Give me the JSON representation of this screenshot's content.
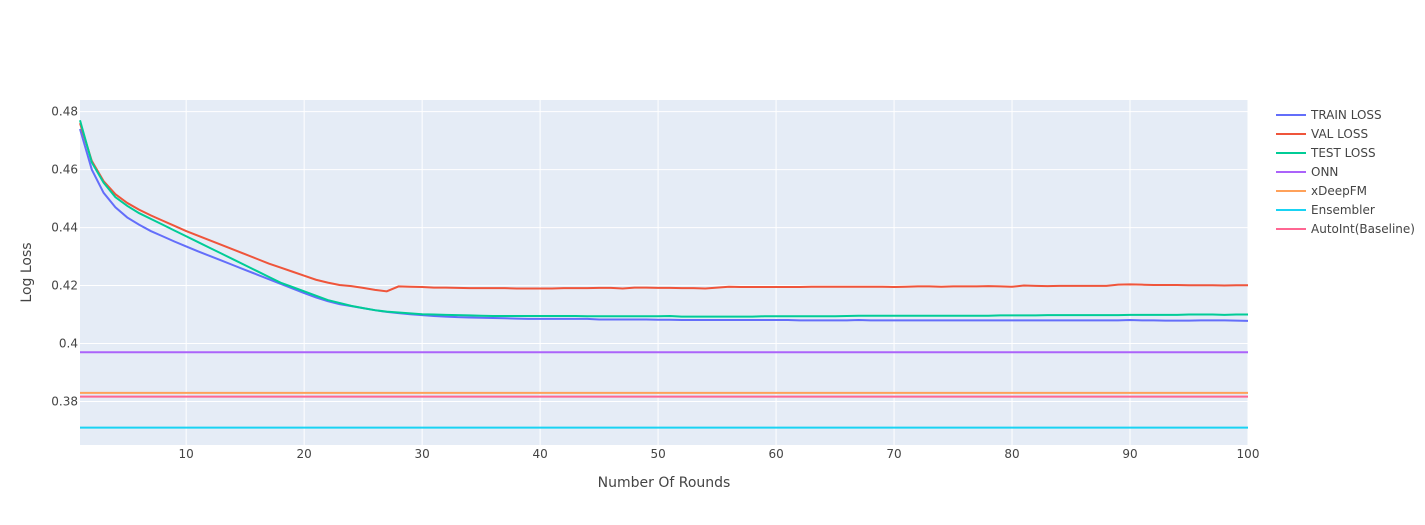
{
  "chart_data": {
    "type": "line",
    "title": "",
    "xlabel": "Number Of Rounds",
    "ylabel": "Log Loss",
    "xlim": [
      1,
      100
    ],
    "ylim": [
      0.365,
      0.484
    ],
    "x_ticks": [
      10,
      20,
      30,
      40,
      50,
      60,
      70,
      80,
      90,
      100
    ],
    "y_ticks": [
      0.38,
      0.4,
      0.42,
      0.44,
      0.46,
      0.48
    ],
    "y_tick_labels": [
      "0.38",
      "0.4",
      "0.42",
      "0.44",
      "0.46",
      "0.48"
    ],
    "grid": true,
    "legend_position": "right",
    "x": [
      1,
      2,
      3,
      4,
      5,
      6,
      7,
      8,
      9,
      10,
      11,
      12,
      13,
      14,
      15,
      16,
      17,
      18,
      19,
      20,
      21,
      22,
      23,
      24,
      25,
      26,
      27,
      28,
      29,
      30,
      31,
      32,
      33,
      34,
      35,
      36,
      37,
      38,
      39,
      40,
      41,
      42,
      43,
      44,
      45,
      46,
      47,
      48,
      49,
      50,
      51,
      52,
      53,
      54,
      55,
      56,
      57,
      58,
      59,
      60,
      61,
      62,
      63,
      64,
      65,
      66,
      67,
      68,
      69,
      70,
      71,
      72,
      73,
      74,
      75,
      76,
      77,
      78,
      79,
      80,
      81,
      82,
      83,
      84,
      85,
      86,
      87,
      88,
      89,
      90,
      91,
      92,
      93,
      94,
      95,
      96,
      97,
      98,
      99,
      100
    ],
    "series": [
      {
        "name": "TRAIN LOSS",
        "color": "#636efa",
        "values": [
          0.474,
          0.46,
          0.452,
          0.447,
          0.4435,
          0.441,
          0.4388,
          0.437,
          0.4352,
          0.4335,
          0.4318,
          0.4302,
          0.4286,
          0.427,
          0.4254,
          0.4238,
          0.4222,
          0.4206,
          0.419,
          0.4174,
          0.4159,
          0.4146,
          0.4136,
          0.4129,
          0.4122,
          0.4115,
          0.4109,
          0.4105,
          0.4101,
          0.4098,
          0.4095,
          0.4093,
          0.4091,
          0.409,
          0.4089,
          0.4088,
          0.4087,
          0.4086,
          0.4085,
          0.4085,
          0.4085,
          0.4085,
          0.4085,
          0.4085,
          0.4083,
          0.4083,
          0.4083,
          0.4083,
          0.4083,
          0.4082,
          0.4082,
          0.4081,
          0.4081,
          0.4081,
          0.4081,
          0.4081,
          0.4081,
          0.4081,
          0.4081,
          0.4081,
          0.4081,
          0.408,
          0.408,
          0.408,
          0.408,
          0.408,
          0.4081,
          0.408,
          0.408,
          0.408,
          0.408,
          0.408,
          0.408,
          0.408,
          0.408,
          0.408,
          0.408,
          0.408,
          0.408,
          0.408,
          0.408,
          0.408,
          0.408,
          0.408,
          0.408,
          0.408,
          0.408,
          0.408,
          0.408,
          0.4081,
          0.408,
          0.408,
          0.4079,
          0.4079,
          0.4079,
          0.408,
          0.408,
          0.408,
          0.4079,
          0.4078
        ]
      },
      {
        "name": "VAL LOSS",
        "color": "#ef553b",
        "values": [
          0.476,
          0.463,
          0.456,
          0.4515,
          0.4485,
          0.4462,
          0.4442,
          0.4424,
          0.4406,
          0.4388,
          0.4372,
          0.4356,
          0.434,
          0.4324,
          0.4308,
          0.4292,
          0.4276,
          0.4262,
          0.4248,
          0.4234,
          0.422,
          0.421,
          0.4202,
          0.4198,
          0.4192,
          0.4185,
          0.418,
          0.4197,
          0.4196,
          0.4195,
          0.4193,
          0.4193,
          0.4192,
          0.4191,
          0.4191,
          0.4191,
          0.4191,
          0.419,
          0.419,
          0.419,
          0.419,
          0.4191,
          0.4191,
          0.4191,
          0.4192,
          0.4192,
          0.419,
          0.4193,
          0.4193,
          0.4192,
          0.4192,
          0.4191,
          0.4191,
          0.419,
          0.4193,
          0.4196,
          0.4195,
          0.4195,
          0.4195,
          0.4195,
          0.4195,
          0.4195,
          0.4196,
          0.4196,
          0.4196,
          0.4196,
          0.4196,
          0.4196,
          0.4196,
          0.4195,
          0.4196,
          0.4197,
          0.4197,
          0.4196,
          0.4197,
          0.4197,
          0.4197,
          0.4198,
          0.4197,
          0.4196,
          0.42,
          0.4199,
          0.4198,
          0.4199,
          0.4199,
          0.4199,
          0.4199,
          0.4199,
          0.4203,
          0.4204,
          0.4203,
          0.4202,
          0.4202,
          0.4202,
          0.4201,
          0.4201,
          0.4201,
          0.42,
          0.4201,
          0.4201
        ]
      },
      {
        "name": "TEST LOSS",
        "color": "#00cc96",
        "values": [
          0.477,
          0.4625,
          0.4555,
          0.4505,
          0.4475,
          0.445,
          0.443,
          0.441,
          0.439,
          0.437,
          0.435,
          0.433,
          0.431,
          0.429,
          0.427,
          0.425,
          0.423,
          0.421,
          0.4195,
          0.418,
          0.4165,
          0.415,
          0.414,
          0.413,
          0.4122,
          0.4115,
          0.411,
          0.4107,
          0.4104,
          0.4101,
          0.41,
          0.4099,
          0.4098,
          0.4097,
          0.4096,
          0.4095,
          0.4095,
          0.4095,
          0.4095,
          0.4095,
          0.4095,
          0.4095,
          0.4095,
          0.4094,
          0.4094,
          0.4094,
          0.4094,
          0.4094,
          0.4094,
          0.4094,
          0.4095,
          0.4093,
          0.4093,
          0.4093,
          0.4093,
          0.4093,
          0.4093,
          0.4093,
          0.4094,
          0.4094,
          0.4094,
          0.4094,
          0.4094,
          0.4094,
          0.4094,
          0.4095,
          0.4096,
          0.4096,
          0.4096,
          0.4096,
          0.4096,
          0.4096,
          0.4096,
          0.4096,
          0.4096,
          0.4096,
          0.4096,
          0.4096,
          0.4097,
          0.4097,
          0.4097,
          0.4097,
          0.4098,
          0.4098,
          0.4098,
          0.4098,
          0.4098,
          0.4098,
          0.4098,
          0.4099,
          0.4099,
          0.4099,
          0.4099,
          0.4099,
          0.41,
          0.41,
          0.41,
          0.4099,
          0.41,
          0.41
        ]
      },
      {
        "name": "ONN",
        "color": "#ab63fa",
        "constant": 0.397
      },
      {
        "name": "xDeepFM",
        "color": "#ffa15a",
        "constant": 0.383
      },
      {
        "name": "Ensembler",
        "color": "#19d3f3",
        "constant": 0.371
      },
      {
        "name": "AutoInt(Baseline)",
        "color": "#ff6692",
        "constant": 0.3817
      }
    ]
  }
}
